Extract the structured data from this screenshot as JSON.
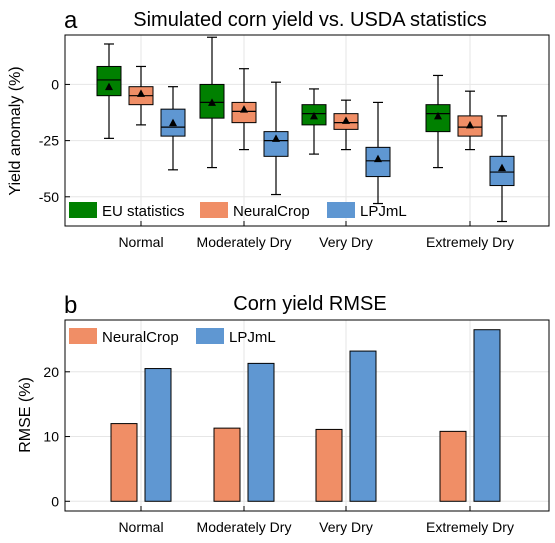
{
  "colors": {
    "eu": "#008000",
    "neuralcrop": "#f08e66",
    "lpjml": "#5f97d2",
    "frame": "#000000",
    "grid": "#e6e6e6"
  },
  "chart_data": [
    {
      "panel_letter": "a",
      "type": "boxplot",
      "title": "Simulated corn yield vs. USDA statistics",
      "xlabel": "",
      "ylabel": "Yield anomaly (%)",
      "ylim": [
        -63,
        22
      ],
      "yticks": [
        0,
        -25,
        -50
      ],
      "grid": true,
      "legend_position": "bottom-left",
      "categories": [
        "Normal",
        "Moderately Dry",
        "Very Dry",
        "Extremely Dry"
      ],
      "series": [
        {
          "name": "EU statistics",
          "color_key": "eu",
          "boxes": [
            {
              "whislo": -24,
              "q1": -5,
              "med": 2,
              "q3": 8,
              "whishi": 18,
              "mean": -1
            },
            {
              "whislo": -37,
              "q1": -15,
              "med": -8,
              "q3": 0,
              "whishi": 21,
              "mean": -8
            },
            {
              "whislo": -31,
              "q1": -18,
              "med": -13,
              "q3": -9,
              "whishi": -2,
              "mean": -14
            },
            {
              "whislo": -37,
              "q1": -21,
              "med": -13,
              "q3": -9,
              "whishi": 4,
              "mean": -14
            }
          ]
        },
        {
          "name": "NeuralCrop",
          "color_key": "neuralcrop",
          "boxes": [
            {
              "whislo": -18,
              "q1": -9,
              "med": -5,
              "q3": -1,
              "whishi": 8,
              "mean": -4
            },
            {
              "whislo": -29,
              "q1": -17,
              "med": -12,
              "q3": -8,
              "whishi": 7,
              "mean": -11
            },
            {
              "whislo": -29,
              "q1": -20,
              "med": -17,
              "q3": -13,
              "whishi": -7,
              "mean": -16
            },
            {
              "whislo": -29,
              "q1": -23,
              "med": -19,
              "q3": -14,
              "whishi": -3,
              "mean": -18
            }
          ]
        },
        {
          "name": "LPJmL",
          "color_key": "lpjml",
          "boxes": [
            {
              "whislo": -38,
              "q1": -23,
              "med": -19,
              "q3": -11,
              "whishi": -1,
              "mean": -17
            },
            {
              "whislo": -49,
              "q1": -32,
              "med": -25,
              "q3": -21,
              "whishi": 1,
              "mean": -24
            },
            {
              "whislo": -53,
              "q1": -41,
              "med": -34,
              "q3": -28,
              "whishi": -8,
              "mean": -33
            },
            {
              "whislo": -61,
              "q1": -45,
              "med": -39,
              "q3": -32,
              "whishi": -14,
              "mean": -37
            }
          ]
        }
      ]
    },
    {
      "panel_letter": "b",
      "type": "bar",
      "title": "Corn yield RMSE",
      "xlabel": "",
      "ylabel": "RMSE (%)",
      "ylim": [
        -1.5,
        28
      ],
      "yticks": [
        0,
        10,
        20
      ],
      "grid": true,
      "legend_position": "top-left",
      "categories": [
        "Normal",
        "Moderately Dry",
        "Very Dry",
        "Extremely Dry"
      ],
      "series": [
        {
          "name": "NeuralCrop",
          "color_key": "neuralcrop",
          "values": [
            12.0,
            11.3,
            11.1,
            10.8
          ]
        },
        {
          "name": "LPJmL",
          "color_key": "lpjml",
          "values": [
            20.5,
            21.3,
            23.2,
            26.5
          ]
        }
      ]
    }
  ]
}
